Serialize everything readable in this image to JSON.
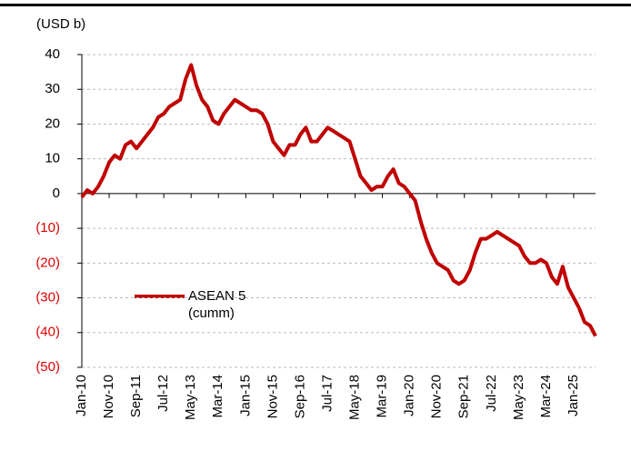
{
  "chart_data": {
    "type": "line",
    "y_label": "(USD b)",
    "categories": [
      "Jan-10",
      null,
      null,
      null,
      null,
      "Nov-10",
      null,
      null,
      null,
      null,
      "Sep-11",
      null,
      null,
      null,
      null,
      "Jul-12",
      null,
      null,
      null,
      null,
      "May-13",
      null,
      null,
      null,
      null,
      "Mar-14",
      null,
      null,
      null,
      null,
      "Jan-15",
      null,
      null,
      null,
      null,
      "Nov-15",
      null,
      null,
      null,
      null,
      "Sep-16",
      null,
      null,
      null,
      null,
      "Jul-17",
      null,
      null,
      null,
      null,
      "May-18",
      null,
      null,
      null,
      null,
      "Mar-19",
      null,
      null,
      null,
      null,
      "Jan-20",
      null,
      null,
      null,
      null,
      "Nov-20",
      null,
      null,
      null,
      null,
      "Sep-21",
      null,
      null,
      null,
      null,
      "Jul-22",
      null,
      null,
      null,
      null,
      "May-23",
      null,
      null,
      null,
      null,
      "Mar-24",
      null,
      null,
      null,
      null,
      "Jan-25",
      null,
      null,
      null,
      null
    ],
    "series": [
      {
        "name": "ASEAN 5 (cumm)",
        "color": "#c00000",
        "values": [
          -1,
          1,
          0,
          2,
          5,
          9,
          11,
          10,
          14,
          15,
          13,
          15,
          17,
          19,
          22,
          23,
          25,
          26,
          27,
          33,
          37,
          31,
          27,
          25,
          21,
          20,
          23,
          25,
          27,
          26,
          25,
          24,
          24,
          23,
          20,
          15,
          13,
          11,
          14,
          14,
          17,
          19,
          15,
          15,
          17,
          19,
          18,
          17,
          16,
          15,
          10,
          5,
          3,
          1,
          2,
          2,
          5,
          7,
          3,
          2,
          0,
          -2,
          -8,
          -13,
          -17,
          -20,
          -21,
          -22,
          -25,
          -26,
          -25,
          -22,
          -17,
          -13,
          -13,
          -12,
          -11,
          -12,
          -13,
          -14,
          -15,
          -18,
          -20,
          -20,
          -19,
          -20,
          -24,
          -26,
          -21,
          -27,
          -30,
          -33,
          -37,
          -38,
          -41
        ]
      }
    ],
    "ylim": [
      -50,
      40
    ],
    "yticks": [
      40,
      30,
      20,
      10,
      0,
      {
        "value": -10,
        "label": "(10)"
      },
      {
        "value": -20,
        "label": "(20)"
      },
      {
        "value": -30,
        "label": "(30)"
      },
      {
        "value": -40,
        "label": "(40)"
      },
      {
        "value": -50,
        "label": "(50)"
      }
    ],
    "negative_tick_color": "#e00000",
    "grid": true
  }
}
